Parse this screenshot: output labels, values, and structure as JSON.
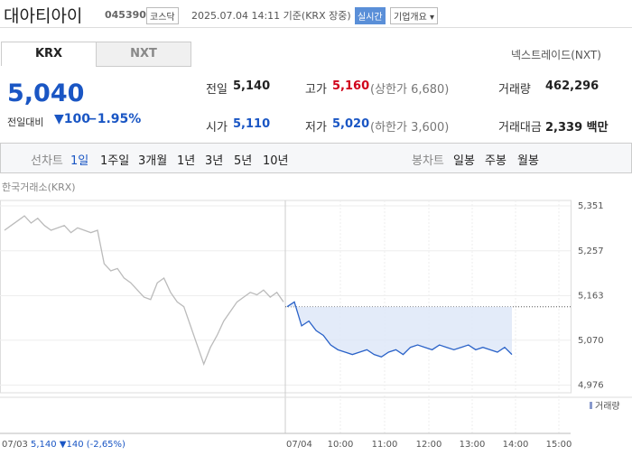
{
  "header": {
    "name": "대아티아이",
    "code": "045390",
    "market": "코스닥",
    "timestamp": "2025.07.04 14:11 기준(KRX 장중)",
    "realtime": "실시간",
    "company_info": "기업개요"
  },
  "tabs": [
    "KRX",
    "NXT"
  ],
  "nxt_link": "넥스트레이드(NXT)",
  "price": {
    "current": "5,040",
    "change_label": "전일대비",
    "change": "100",
    "change_pct": "−1.95%"
  },
  "stats": [
    {
      "label": "전일",
      "value": "5,140"
    },
    {
      "label": "고가",
      "value": "5,160",
      "limit": "(상한가 6,680)"
    },
    {
      "label": "거래량",
      "value": "462,296"
    },
    {
      "label": "시가",
      "value": "5,110"
    },
    {
      "label": "저가",
      "value": "5,020",
      "limit": "(하한가 3,600)"
    },
    {
      "label": "거래대금",
      "value": "2,339 백만"
    }
  ],
  "period": {
    "line_label": "선차트",
    "line_options": [
      "1일",
      "1주일",
      "3개월",
      "1년",
      "3년",
      "5년",
      "10년"
    ],
    "candle_label": "봉차트",
    "candle_options": [
      "일봉",
      "주봉",
      "월봉"
    ]
  },
  "chart_data": {
    "type": "line",
    "source": "한국거래소(KRX)",
    "volume_label": "거래량",
    "ylim": [
      4960,
      5351
    ],
    "yticks": [
      {
        "value": 5351,
        "label": "5,351"
      },
      {
        "value": 5257,
        "label": "5,257"
      },
      {
        "value": 5163,
        "label": "5,163"
      },
      {
        "value": 5070,
        "label": "5,070"
      },
      {
        "value": 4976,
        "label": "4,976"
      }
    ],
    "x_labels": [
      "07/03",
      "07/04",
      "10:00",
      "11:00",
      "12:00",
      "13:00",
      "14:00",
      "15:00"
    ],
    "baseline": 5140,
    "series": [
      {
        "name": "07/03",
        "color": "#bbbbbb",
        "values": [
          5300,
          5310,
          5320,
          5330,
          5315,
          5325,
          5310,
          5300,
          5305,
          5310,
          5295,
          5305,
          5300,
          5295,
          5300,
          5230,
          5215,
          5220,
          5200,
          5190,
          5175,
          5160,
          5155,
          5190,
          5200,
          5170,
          5150,
          5140,
          5100,
          5060,
          5020,
          5055,
          5080,
          5110,
          5130,
          5150,
          5160,
          5170,
          5165,
          5175,
          5160,
          5170,
          5150
        ]
      },
      {
        "name": "07/04",
        "color": "#2a62c8",
        "values": [
          5140,
          5150,
          5100,
          5110,
          5090,
          5080,
          5060,
          5050,
          5045,
          5040,
          5045,
          5050,
          5040,
          5035,
          5045,
          5050,
          5040,
          5055,
          5060,
          5055,
          5050,
          5060,
          5055,
          5050,
          5055,
          5060,
          5050,
          5055,
          5050,
          5045,
          5055,
          5040
        ]
      }
    ],
    "prev_summary": "5,140 ▼140 (-2,65%)"
  }
}
